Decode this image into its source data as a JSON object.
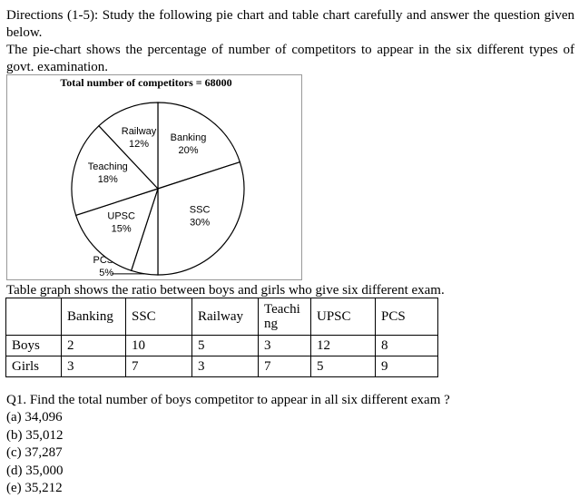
{
  "directions": "Directions (1-5): Study the following pie chart and table chart carefully and answer the question given below.",
  "description": "The pie-chart shows the percentage of number of competitors to appear in the six different types of govt. examination.",
  "chart_data": {
    "type": "pie",
    "title": "Total number of competitors = 68000",
    "categories": [
      "Banking",
      "SSC",
      "PCS",
      "UPSC",
      "Teaching",
      "Railway"
    ],
    "values": [
      20,
      30,
      5,
      15,
      18,
      12
    ],
    "value_labels": [
      "20%",
      "30%",
      "5%",
      "15%",
      "18%",
      "12%"
    ]
  },
  "table": {
    "caption": "Table graph shows the ratio between boys and girls who give six different exam.",
    "header": [
      "Banking",
      "SSC",
      "Railway",
      "Teaching",
      "UPSC",
      "PCS"
    ],
    "rows": [
      {
        "label": "Boys",
        "cells": [
          2,
          10,
          5,
          3,
          12,
          8
        ]
      },
      {
        "label": "Girls",
        "cells": [
          3,
          7,
          3,
          7,
          5,
          9
        ]
      }
    ]
  },
  "question": "Q1. Find the total number of boys competitor to appear in all six different exam ?",
  "options": [
    "(a) 34,096",
    "(b) 35,012",
    "(c) 37,287",
    "(d) 35,000",
    "(e) 35,212"
  ]
}
